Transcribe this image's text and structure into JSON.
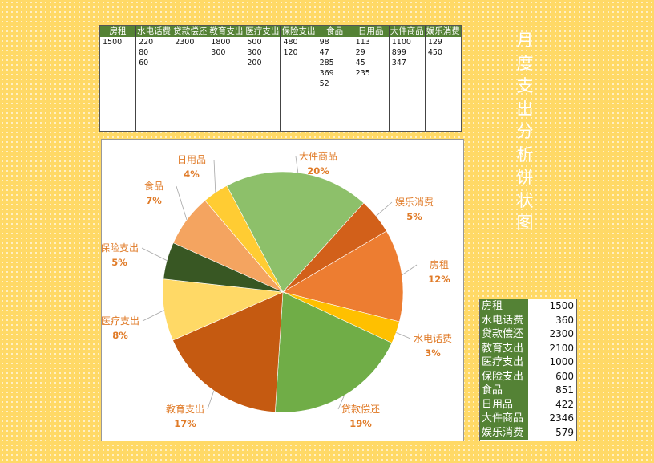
{
  "title": "月度支出分析饼状图",
  "source_table": {
    "columns": [
      {
        "header": "房租",
        "values": [
          "1500"
        ]
      },
      {
        "header": "水电话费",
        "values": [
          "220",
          "80",
          "60"
        ]
      },
      {
        "header": "贷款偿还",
        "values": [
          "2300"
        ]
      },
      {
        "header": "教育支出",
        "values": [
          "1800",
          "300"
        ]
      },
      {
        "header": "医疗支出",
        "values": [
          "500",
          "300",
          "200"
        ]
      },
      {
        "header": "保险支出",
        "values": [
          "480",
          "120"
        ]
      },
      {
        "header": "食品",
        "values": [
          "98",
          "47",
          "285",
          "369",
          "52"
        ]
      },
      {
        "header": "日用品",
        "values": [
          "113",
          "29",
          "45",
          "235"
        ]
      },
      {
        "header": "大件商品",
        "values": [
          "1100",
          "899",
          "347"
        ]
      },
      {
        "header": "娱乐消费",
        "values": [
          "129",
          "450"
        ]
      }
    ]
  },
  "summary_table": {
    "rows": [
      {
        "label": "房租",
        "value": "1500"
      },
      {
        "label": "水电话费",
        "value": "360"
      },
      {
        "label": "贷款偿还",
        "value": "2300"
      },
      {
        "label": "教育支出",
        "value": "2100"
      },
      {
        "label": "医疗支出",
        "value": "1000"
      },
      {
        "label": "保险支出",
        "value": "600"
      },
      {
        "label": "食品",
        "value": "851"
      },
      {
        "label": "日用品",
        "value": "422"
      },
      {
        "label": "大件商品",
        "value": "2346"
      },
      {
        "label": "娱乐消费",
        "value": "579"
      }
    ]
  },
  "chart_data": {
    "type": "pie",
    "title": "月度支出分析饼状图",
    "categories": [
      "房租",
      "水电话费",
      "贷款偿还",
      "教育支出",
      "医疗支出",
      "保险支出",
      "食品",
      "日用品",
      "大件商品",
      "娱乐消费"
    ],
    "values": [
      1500,
      360,
      2300,
      2100,
      1000,
      600,
      851,
      422,
      2346,
      579
    ],
    "percent_labels": [
      "12%",
      "3%",
      "19%",
      "17%",
      "8%",
      "5%",
      "7%",
      "4%",
      "20%",
      "5%"
    ],
    "colors": [
      "#ed7d31",
      "#ffc000",
      "#70ad47",
      "#c55a11",
      "#ffd966",
      "#385723",
      "#f4a460",
      "#ffcc33",
      "#8dc06a",
      "#d2601a"
    ],
    "legend": "none",
    "label_color": "#e07b28"
  }
}
